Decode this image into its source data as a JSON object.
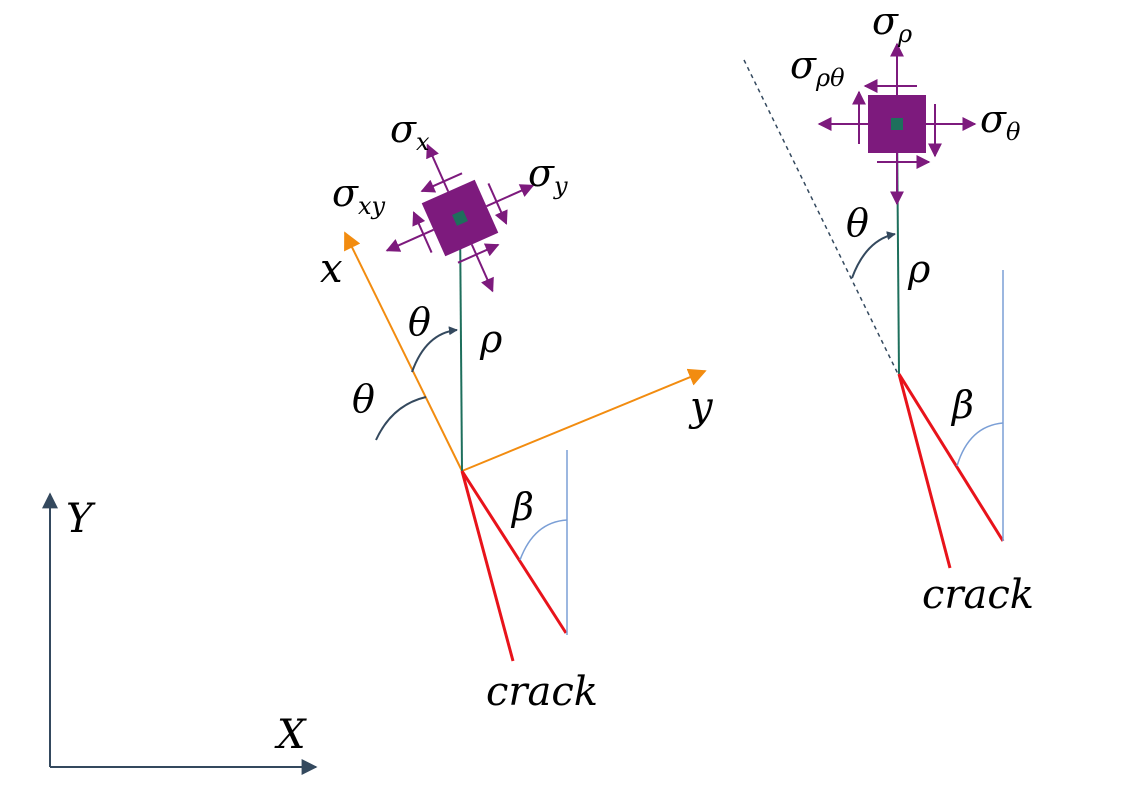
{
  "labels": {
    "global_x": "X",
    "global_y": "Y",
    "local_x": "x",
    "local_y": "y",
    "theta_left_small": "θ",
    "theta_left_large": "θ",
    "rho_left": "ρ",
    "beta_left": "β",
    "crack_left": "crack",
    "sigma": "σ",
    "sub_x": "x",
    "sub_y": "y",
    "sub_xy": "xy",
    "theta_right": "θ",
    "rho_right": "ρ",
    "beta_right": "β",
    "crack_right": "crack",
    "sub_rho": "ρ",
    "sub_rhotheta": "ρθ",
    "sub_theta": "θ"
  },
  "colors": {
    "axis": "#34495e",
    "orange": "#f28c10",
    "teal": "#1e6f5c",
    "purple": "#7d1a7d",
    "crack": "#e8131b",
    "blue": "#7b9fd6",
    "dark": "#34495e"
  },
  "icons": {
    "stress_element": "square-stress-element",
    "arrow": "arrow-head"
  }
}
